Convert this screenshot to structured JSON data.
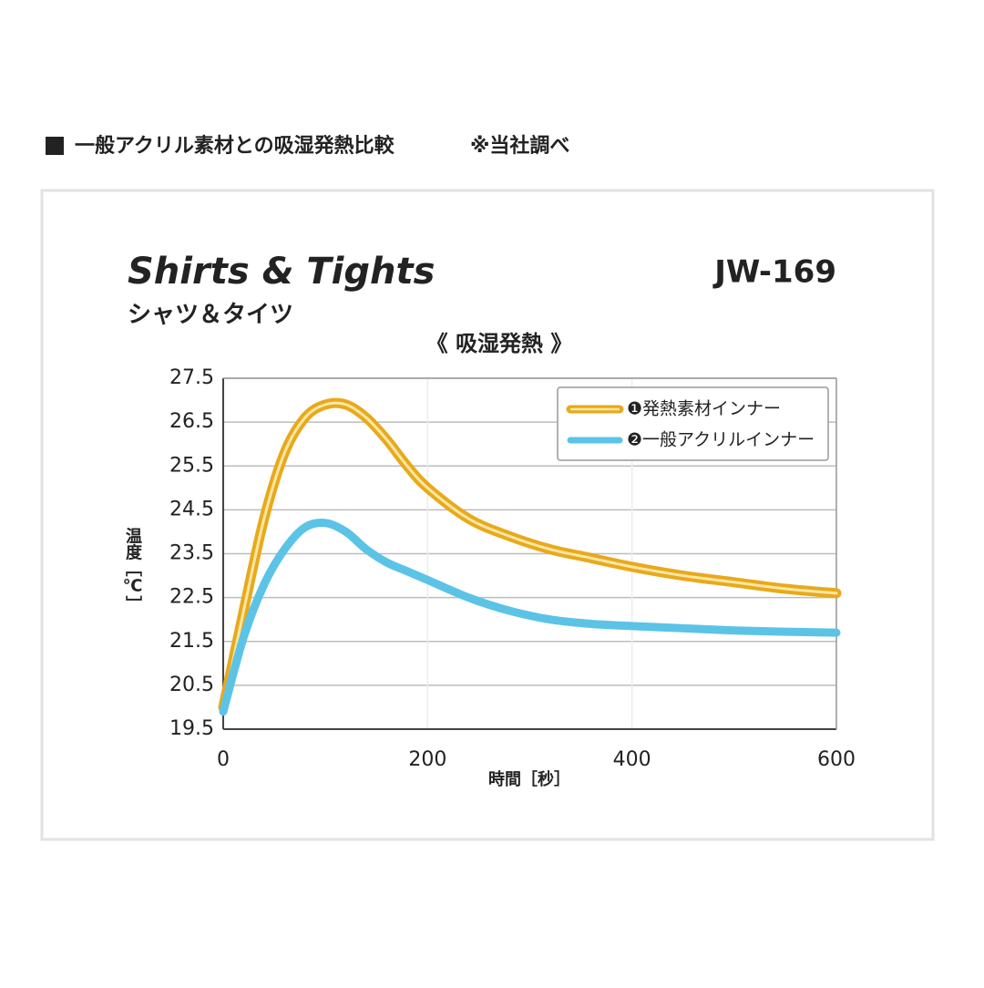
{
  "chart_data": {
    "type": "line",
    "heading": "一般アクリル素材との吸湿発熱比較",
    "note": "※当社調べ",
    "title": "Shirts & Tights",
    "subtitle": "シャツ＆タイツ",
    "model": "JW-169",
    "plot_title": "《 吸湿発熱 》",
    "xlabel": "時間［秒］",
    "ylabel": "温度［℃］",
    "x": [
      0,
      20,
      40,
      60,
      80,
      100,
      120,
      140,
      160,
      180,
      200,
      240,
      280,
      320,
      360,
      400,
      450,
      500,
      550,
      600
    ],
    "series": [
      {
        "name": "❶発熱素材インナー",
        "color": "#e8a91c",
        "values": [
          20.0,
          22.2,
          24.3,
          25.8,
          26.6,
          26.9,
          26.9,
          26.6,
          26.1,
          25.5,
          25.0,
          24.3,
          23.9,
          23.6,
          23.4,
          23.2,
          23.0,
          22.85,
          22.7,
          22.6
        ]
      },
      {
        "name": "❷一般アクリルインナー",
        "color": "#5bc3e6",
        "values": [
          19.9,
          21.6,
          22.8,
          23.6,
          24.1,
          24.2,
          24.0,
          23.6,
          23.3,
          23.1,
          22.9,
          22.5,
          22.2,
          22.0,
          21.9,
          21.85,
          21.8,
          21.75,
          21.72,
          21.7
        ]
      }
    ],
    "xlim": [
      0,
      600
    ],
    "xticks": [
      0,
      200,
      400,
      600
    ],
    "ylim": [
      19.5,
      27.5
    ],
    "yticks": [
      19.5,
      20.5,
      21.5,
      22.5,
      23.5,
      24.5,
      25.5,
      26.5,
      27.5
    ],
    "grid": true,
    "legend": "upper right"
  }
}
